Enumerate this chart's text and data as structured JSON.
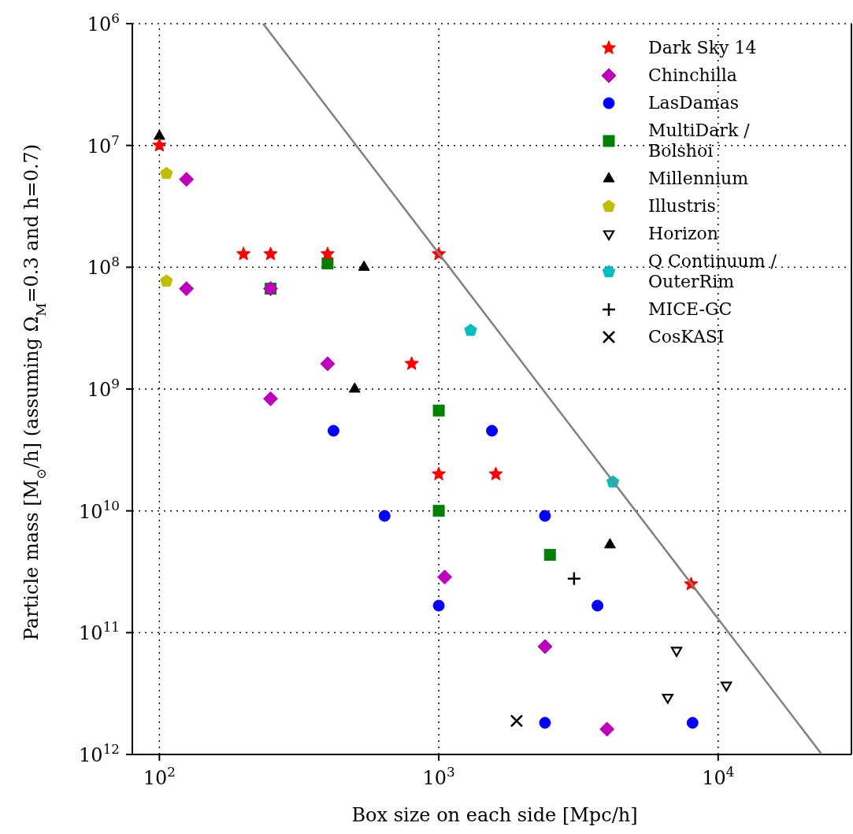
{
  "chart_data": {
    "type": "scatter",
    "xlabel": "Box size on each side [Mpc/h]",
    "ylabel": "Particle mass [M$_{⊙}$/h] (assuming Ω$_{M}$=0.3 and h=0.7)",
    "log": "xy",
    "grid": true,
    "legend": "top right",
    "xlim": [
      80,
      30000
    ],
    "xticks": [
      {
        "value": 100,
        "label": "10$^{2}$"
      },
      {
        "value": 1000,
        "label": "10$^{3}$"
      },
      {
        "value": 10000,
        "label": "10$^{4}$"
      }
    ],
    "ylim": [
      1000000000000.0,
      1000000.0
    ],
    "yticks": [
      {
        "value": 1000000.0,
        "label": "10$^{6}$"
      },
      {
        "value": 10000000.0,
        "label": "10$^{7}$"
      },
      {
        "value": 100000000.0,
        "label": "10$^{8}$"
      },
      {
        "value": 1000000000.0,
        "label": "10$^{9}$"
      },
      {
        "value": 10000000000.0,
        "label": "10$^{10}$"
      },
      {
        "value": 100000000000.0,
        "label": "10$^{11}$"
      },
      {
        "value": 1000000000000.0,
        "label": "10$^{12}$"
      }
    ],
    "series": [
      {
        "type": "line",
        "color": "#808080",
        "marker": "none",
        "x": [
          235,
          23500
        ],
        "values": [
          1000000.0,
          1000000000000.0
        ]
      },
      {
        "name": "Dark Sky 14",
        "color": "#ff0000",
        "marker": "star",
        "x": [
          250,
          400,
          1000
        ],
        "values": [
          78000000.0,
          78000000.0,
          5000000000.0
        ]
      },
      {
        "color": "#ff0000",
        "marker": "star",
        "x": [
          100,
          200,
          1000,
          800,
          1600,
          8000
        ],
        "values": [
          10000000.0,
          78000000.0,
          78000000.0,
          620000000.0,
          5000000000.0,
          40000000000.0
        ]
      },
      {
        "name": "Chinchilla",
        "color": "#bf00bf",
        "marker": "diamond",
        "x": [
          125,
          125,
          250,
          400,
          250
        ],
        "values": [
          19000000.0,
          150000000.0,
          150000000.0,
          620000000.0,
          1200000000.0
        ]
      },
      {
        "color": "#bf00bf",
        "marker": "diamond",
        "x": [
          1050,
          2400,
          4000
        ],
        "values": [
          35000000000.0,
          130000000000.0,
          620000000000.0
        ]
      },
      {
        "name": "LasDamas",
        "color": "#0000ff",
        "marker": "circle",
        "x": [
          420,
          640,
          1000,
          1550,
          2400
        ],
        "values": [
          2200000000.0,
          11000000000.0,
          60000000000.0,
          2200000000.0,
          11000000000.0
        ]
      },
      {
        "color": "#0000ff",
        "marker": "circle",
        "x": [
          3700,
          2400,
          8100
        ],
        "values": [
          60000000000.0,
          550000000000.0,
          550000000000.0
        ]
      },
      {
        "name": "MultiDark / Bolshoi",
        "color": "#008000",
        "marker": "square",
        "x": [
          400,
          250,
          1000,
          1000
        ],
        "values": [
          93000000.0,
          150000000.0,
          1500000000.0,
          10000000000.0
        ]
      },
      {
        "color": "#008000",
        "marker": "square",
        "x": [
          2500
        ],
        "values": [
          23000000000.0
        ]
      },
      {
        "name": "Millennium",
        "color": "#000000",
        "marker": "triangle",
        "x": [
          100,
          540,
          500,
          4100
        ],
        "values": [
          8400000.0,
          100000000.0,
          1000000000.0,
          19000000000.0
        ]
      },
      {
        "name": "Illustris",
        "color": "#bfbf00",
        "x": [
          106,
          106
        ],
        "values": [
          17000000.0,
          130000000.0
        ]
      },
      {
        "name": "Horizon",
        "color": "#000000",
        "marker": "triangle_down",
        "x": [
          7100,
          6600,
          10700
        ],
        "values": [
          140000000000.0,
          340000000000.0,
          270000000000.0
        ]
      },
      {
        "name": "Q Continuum / OuterRim",
        "color": "#00bfbf",
        "x": [
          1300,
          4200
        ],
        "values": [
          330000000.0,
          5800000000.0
        ]
      },
      {
        "name": "MICE-GC",
        "color": "#000000",
        "marker": "cross",
        "x": [
          3050
        ],
        "values": [
          36000000000.0
        ]
      },
      {
        "name": "CosKASI",
        "color": "#000000",
        "marker": "x",
        "x": [
          1900
        ],
        "values": [
          530000000000.0
        ]
      }
    ]
  }
}
